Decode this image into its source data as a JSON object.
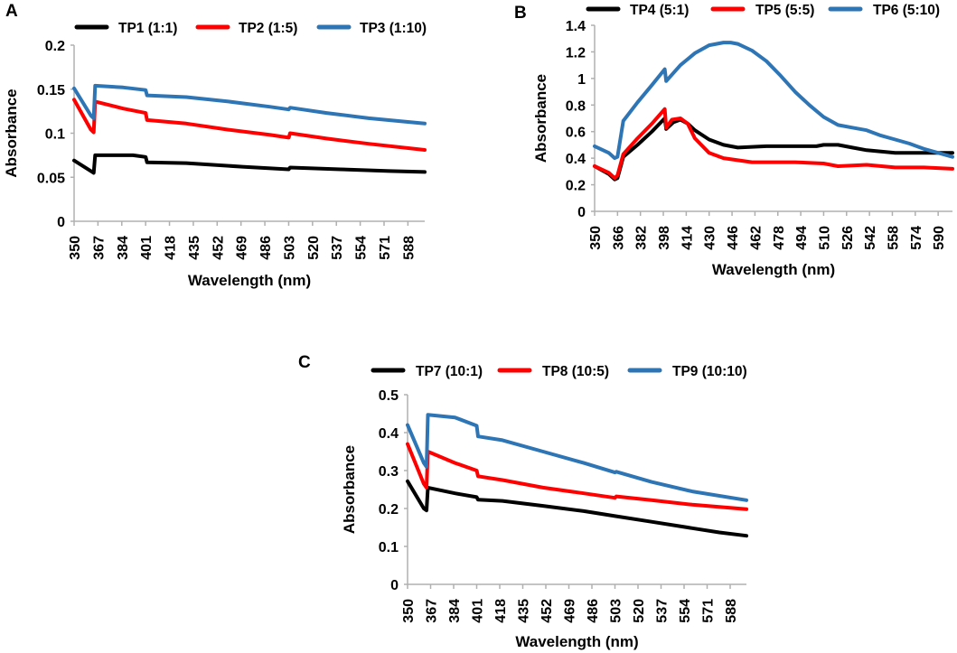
{
  "figure": {
    "panel_labels": [
      "A",
      "B",
      "C"
    ]
  },
  "chart_data": [
    {
      "panel": "A",
      "type": "line",
      "title": "",
      "xlabel": "Wavelength (nm)",
      "ylabel": "Absorbance",
      "xlim": [
        350,
        600
      ],
      "ylim": [
        0,
        0.2
      ],
      "x_ticks": [
        "350",
        "367",
        "384",
        "401",
        "418",
        "435",
        "452",
        "469",
        "486",
        "503",
        "520",
        "537",
        "554",
        "571",
        "588"
      ],
      "y_ticks": [
        "0",
        "0.05",
        "0.1",
        "0.15",
        "0.2"
      ],
      "legend_position": "top",
      "series": [
        {
          "name": "TP1 (1:1)",
          "color": "#000000",
          "x": [
            350,
            362,
            364,
            365,
            380,
            392,
            401,
            402,
            430,
            470,
            503,
            504,
            540,
            575,
            600
          ],
          "y": [
            0.069,
            0.057,
            0.055,
            0.075,
            0.075,
            0.075,
            0.073,
            0.067,
            0.066,
            0.062,
            0.059,
            0.061,
            0.059,
            0.057,
            0.056
          ]
        },
        {
          "name": "TP2 (1:5)",
          "color": "#ff0000",
          "x": [
            350,
            362,
            364,
            365,
            385,
            401,
            402,
            430,
            460,
            490,
            503,
            504,
            530,
            560,
            600
          ],
          "y": [
            0.138,
            0.104,
            0.101,
            0.136,
            0.128,
            0.123,
            0.115,
            0.111,
            0.104,
            0.098,
            0.095,
            0.1,
            0.094,
            0.088,
            0.081
          ]
        },
        {
          "name": "TP3 (1:10)",
          "color": "#2e75b6",
          "x": [
            350,
            362,
            364,
            365,
            385,
            401,
            402,
            430,
            460,
            490,
            503,
            504,
            530,
            560,
            600
          ],
          "y": [
            0.151,
            0.12,
            0.117,
            0.154,
            0.152,
            0.149,
            0.143,
            0.141,
            0.136,
            0.13,
            0.127,
            0.129,
            0.123,
            0.117,
            0.111
          ]
        }
      ]
    },
    {
      "panel": "B",
      "type": "line",
      "title": "",
      "xlabel": "Wavelength (nm)",
      "ylabel": "Absorbance",
      "xlim": [
        350,
        600
      ],
      "ylim": [
        0,
        1.4
      ],
      "x_ticks": [
        "350",
        "366",
        "382",
        "398",
        "414",
        "430",
        "446",
        "462",
        "478",
        "494",
        "510",
        "526",
        "542",
        "558",
        "574",
        "590"
      ],
      "y_ticks": [
        "0",
        "0.2",
        "0.4",
        "0.6",
        "0.8",
        "1",
        "1.2",
        "1.4"
      ],
      "legend_position": "top",
      "series": [
        {
          "name": "TP4 (5:1)",
          "color": "#000000",
          "x": [
            350,
            360,
            364,
            366,
            370,
            380,
            390,
            399,
            400,
            405,
            410,
            415,
            420,
            430,
            440,
            450,
            470,
            490,
            505,
            510,
            520,
            530,
            540,
            550,
            560,
            580,
            600
          ],
          "y": [
            0.34,
            0.28,
            0.24,
            0.25,
            0.41,
            0.5,
            0.6,
            0.7,
            0.62,
            0.67,
            0.69,
            0.66,
            0.61,
            0.54,
            0.5,
            0.48,
            0.49,
            0.49,
            0.49,
            0.5,
            0.5,
            0.48,
            0.46,
            0.45,
            0.44,
            0.44,
            0.44
          ]
        },
        {
          "name": "TP5 (5:5)",
          "color": "#ff0000",
          "x": [
            350,
            360,
            364,
            366,
            370,
            380,
            390,
            399,
            400,
            404,
            410,
            415,
            420,
            430,
            440,
            460,
            490,
            510,
            520,
            540,
            560,
            580,
            600
          ],
          "y": [
            0.34,
            0.29,
            0.25,
            0.27,
            0.43,
            0.55,
            0.66,
            0.77,
            0.63,
            0.69,
            0.7,
            0.66,
            0.55,
            0.44,
            0.4,
            0.37,
            0.37,
            0.36,
            0.34,
            0.35,
            0.33,
            0.33,
            0.32
          ]
        },
        {
          "name": "TP6 (5:10)",
          "color": "#2e75b6",
          "x": [
            350,
            360,
            364,
            366,
            370,
            380,
            390,
            399,
            400,
            410,
            420,
            430,
            440,
            445,
            450,
            460,
            470,
            480,
            490,
            500,
            510,
            520,
            530,
            540,
            550,
            560,
            570,
            580,
            600
          ],
          "y": [
            0.49,
            0.44,
            0.4,
            0.41,
            0.68,
            0.82,
            0.95,
            1.07,
            0.98,
            1.1,
            1.19,
            1.25,
            1.27,
            1.27,
            1.26,
            1.21,
            1.13,
            1.02,
            0.9,
            0.8,
            0.71,
            0.65,
            0.63,
            0.61,
            0.57,
            0.54,
            0.51,
            0.47,
            0.41
          ]
        }
      ]
    },
    {
      "panel": "C",
      "type": "line",
      "title": "",
      "xlabel": "Wavelength (nm)",
      "ylabel": "Absorbance",
      "xlim": [
        350,
        600
      ],
      "ylim": [
        0,
        0.5
      ],
      "x_ticks": [
        "350",
        "367",
        "384",
        "401",
        "418",
        "435",
        "452",
        "469",
        "486",
        "503",
        "520",
        "537",
        "554",
        "571",
        "588"
      ],
      "y_ticks": [
        "0",
        "0.1",
        "0.2",
        "0.3",
        "0.4",
        "0.5"
      ],
      "legend_position": "top",
      "series": [
        {
          "name": "TP7 (10:1)",
          "color": "#000000",
          "x": [
            350,
            362,
            364,
            365,
            385,
            401,
            402,
            420,
            450,
            480,
            503,
            530,
            560,
            580,
            600
          ],
          "y": [
            0.272,
            0.2,
            0.195,
            0.255,
            0.24,
            0.23,
            0.223,
            0.22,
            0.207,
            0.193,
            0.18,
            0.165,
            0.148,
            0.137,
            0.128
          ]
        },
        {
          "name": "TP8 (10:5)",
          "color": "#ff0000",
          "x": [
            350,
            362,
            364,
            365,
            385,
            401,
            402,
            420,
            450,
            480,
            503,
            504,
            530,
            560,
            600
          ],
          "y": [
            0.37,
            0.265,
            0.255,
            0.35,
            0.32,
            0.3,
            0.285,
            0.275,
            0.255,
            0.24,
            0.228,
            0.232,
            0.222,
            0.21,
            0.198
          ]
        },
        {
          "name": "TP9 (10:10)",
          "color": "#2e75b6",
          "x": [
            350,
            362,
            364,
            365,
            385,
            401,
            402,
            420,
            450,
            480,
            503,
            504,
            530,
            560,
            600
          ],
          "y": [
            0.42,
            0.32,
            0.31,
            0.447,
            0.44,
            0.418,
            0.39,
            0.38,
            0.35,
            0.32,
            0.295,
            0.297,
            0.27,
            0.245,
            0.222
          ]
        }
      ]
    }
  ]
}
